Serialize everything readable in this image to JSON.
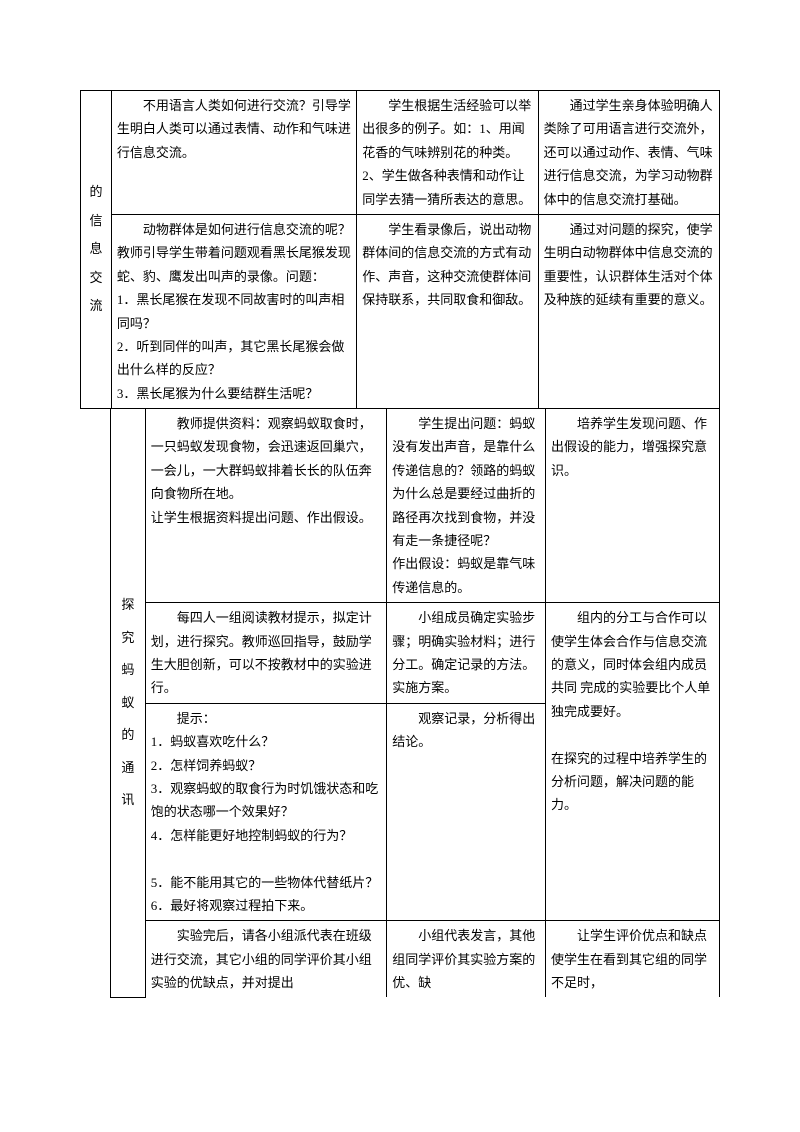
{
  "table1": {
    "header1": "的信息交流",
    "row1": {
      "col2": "不用语言人类如何进行交流？引导学生明白人类可以通过表情、动作和气味进行信息交流。",
      "col3": "学生根据生活经验可以举出很多的例子。如：1、用闻花香的气味辨别花的种类。2、学生做各种表情和动作让同学去猜一猜所表达的意思。",
      "col4": "通过学生亲身体验明确人类除了可用语言进行交流外，还可以通过动作、表情、气味进行信息交流，为学习动物群体中的信息交流打基础。"
    },
    "row2": {
      "col2": "动物群体是如何进行信息交流的呢？教师引导学生带着问题观看黑长尾猴发现蛇、豹、鹰发出叫声的录像。问题：\n1．黑长尾猴在发现不同故害时的叫声相同吗？\n2．听到同伴的叫声，其它黑长尾猴会做出什么样的反应？\n3．黑长尾猴为什么要结群生活呢？",
      "col3": "学生看录像后，说出动物群体间的信息交流的方式有动作、声音，这种交流使群体间保持联系，共同取食和御敌。",
      "col4": "通过对问题的探究，使学生明白动物群体中信息交流的重要性，认识群体生活对个体及种族的延续有重要的意义。"
    }
  },
  "table2": {
    "header": "探究蚂蚁的通讯",
    "row1": {
      "col2": "教师提供资料：观察蚂蚁取食时，一只蚂蚁发现食物，会迅速返回巢穴，一会儿，一大群蚂蚁排着长长的队伍奔向食物所在地。\n让学生根据资料提出问题、作出假设。",
      "col3": "学生提出问题：蚂蚁没有发出声音，是靠什么传递信息的？领路的蚂蚁为什么总是要经过曲折的路径再次找到食物，并没有走一条捷径呢？\n作出假设：蚂蚁是靠气味传递信息的。",
      "col4": "培养学生发现问题、作出假设的能力，增强探究意识。"
    },
    "row2": {
      "col2a": "每四人一组阅读教材提示，拟定计划，进行探究。教师巡回指导，鼓励学生大胆创新，可以不按教材中的实验进行。",
      "col2b": "提示：\n1．蚂蚁喜欢吃什么？\n2．怎样饲养蚂蚁？\n3．观察蚂蚁的取食行为时饥饿状态和吃饱的状态哪一个效果好？\n4．怎样能更好地控制蚂蚁的行为？\n\n5．能不能用其它的一些物体代替纸片？\n6．最好将观察过程拍下来。",
      "col3a": "小组成员确定实验步骤；明确实验材料；进行分工。确定记录的方法。\n实施方案。",
      "col3b": "观察记录，分析得出结论。",
      "col4": "组内的分工与合作可以使学生体会合作与信息交流的意义，同时体会组内成员共同 完成的实验要比个人单独完成要好。\n\n在探究的过程中培养学生的分析问题，解决问题的能力。"
    },
    "row3": {
      "col2": "实验完后，请各小组派代表在班级进行交流，其它小组的同学评价其小组实验的优缺点，并对提出",
      "col3": "小组代表发言，其他组同学评价其实验方案的优、缺",
      "col4": "让学生评价优点和缺点使学生在看到其它组的同学不足时，"
    }
  }
}
